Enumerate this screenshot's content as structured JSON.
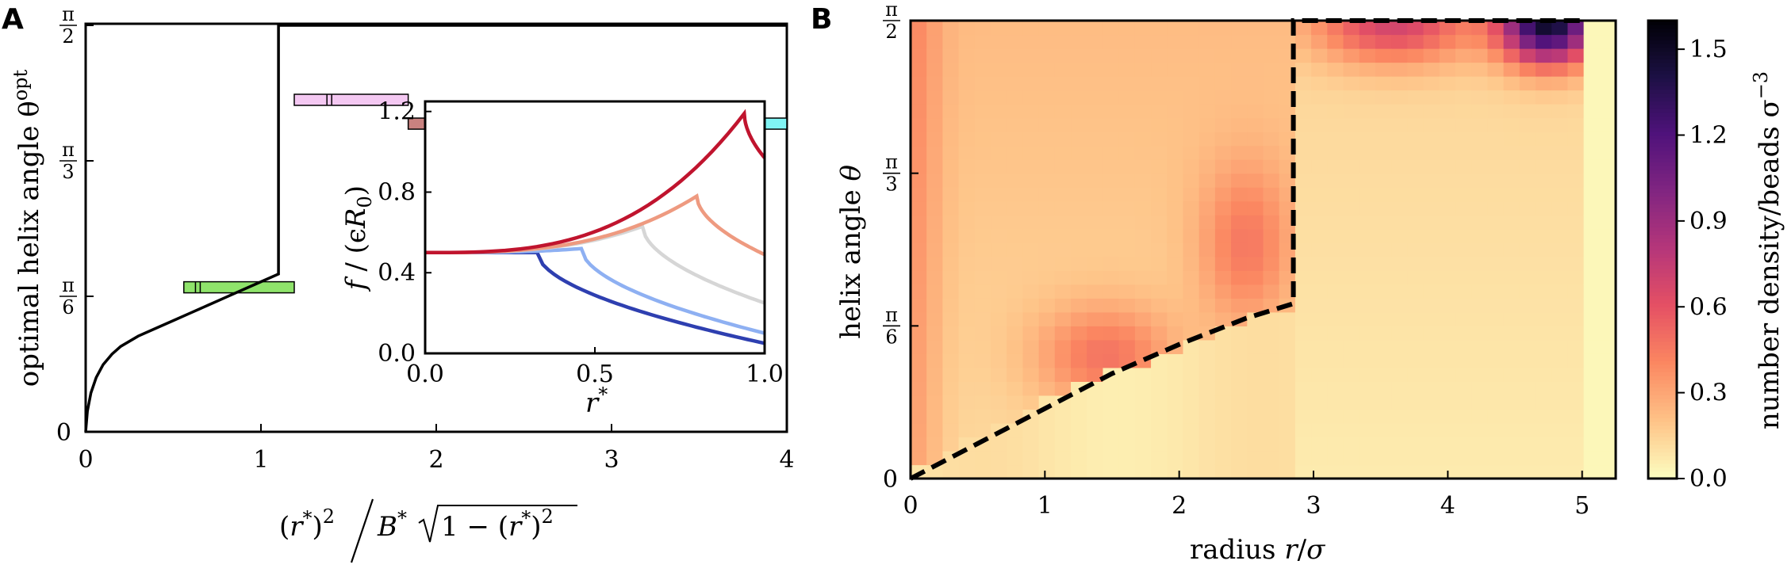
{
  "chart_data": [
    {
      "panel": "A",
      "type": "line",
      "xlabel": "(r*)² / B* √(1 − (r*)²)",
      "ylabel": "optimal helix angle θ^opt",
      "xlim": [
        0,
        4
      ],
      "ylim": [
        0,
        1.5708
      ],
      "xticks": [
        "0",
        "1",
        "2",
        "3",
        "4"
      ],
      "yticks": [
        "0",
        "π/6",
        "π/3",
        "π/2"
      ],
      "curve": {
        "x": [
          0,
          0.01,
          0.03,
          0.06,
          0.1,
          0.15,
          0.2,
          0.3,
          0.4,
          0.5,
          0.6,
          0.7,
          0.8,
          0.9,
          1.0,
          1.1,
          1.1,
          4.0
        ],
        "y": [
          0,
          0.08,
          0.15,
          0.21,
          0.26,
          0.3,
          0.33,
          0.37,
          0.4,
          0.43,
          0.46,
          0.49,
          0.52,
          0.55,
          0.58,
          0.61,
          1.5708,
          1.5708
        ]
      },
      "bars": [
        {
          "color": "#8fe36b",
          "x0": 0.56,
          "x1": 1.19,
          "mark": 0.64,
          "y": 0.5585
        },
        {
          "color": "#f4c8f2",
          "x0": 1.19,
          "x1": 1.84,
          "mark": 1.39,
          "y": 1.283
        },
        {
          "color": "#c98280",
          "x0": 1.84,
          "x1": 3.35,
          "mark": 2.88,
          "y": 1.191
        },
        {
          "color": "#80f4f4",
          "x0": 3.35,
          "x1": 4.0,
          "mark": null,
          "y": 1.191
        }
      ],
      "inset": {
        "xlabel": "r*",
        "ylabel": "f / (εR₀)",
        "xlim": [
          0,
          1
        ],
        "ylim": [
          0,
          1.25
        ],
        "xticks": [
          "0.0",
          "0.5",
          "1.0"
        ],
        "yticks": [
          "0.0",
          "0.4",
          "0.8",
          "1.2"
        ],
        "series": [
          {
            "color": "#2e3fb0",
            "peak_x": 0.33,
            "peak_y": 0.5,
            "end_y": 0.05
          },
          {
            "color": "#8eb0f2",
            "peak_x": 0.46,
            "peak_y": 0.52,
            "end_y": 0.1
          },
          {
            "color": "#d6d6d6",
            "peak_x": 0.64,
            "peak_y": 0.63,
            "end_y": 0.25
          },
          {
            "color": "#ee9a80",
            "peak_x": 0.8,
            "peak_y": 0.78,
            "end_y": 0.49
          },
          {
            "color": "#c0142e",
            "peak_x": 0.94,
            "peak_y": 1.19,
            "end_y": 0.97
          }
        ]
      }
    },
    {
      "panel": "B",
      "type": "heatmap",
      "xlabel": "radius r/σ",
      "ylabel": "helix angle θ",
      "xlim": [
        0,
        5.25
      ],
      "ylim": [
        0,
        1.5708
      ],
      "xticks": [
        "0",
        "1",
        "2",
        "3",
        "4",
        "5"
      ],
      "yticks": [
        "0",
        "π/6",
        "π/3",
        "π/2"
      ],
      "colorbar": {
        "label": "number density/beads σ⁻³",
        "range": [
          0,
          1.6
        ],
        "ticks": [
          "0.0",
          "0.3",
          "0.6",
          "0.9",
          "1.2",
          "1.5"
        ],
        "colormap": "magma_r"
      },
      "boundary": {
        "style": "dashed",
        "x": [
          0,
          0.5,
          1.0,
          1.5,
          2.0,
          2.5,
          2.85,
          2.85,
          5.0
        ],
        "y": [
          0,
          0.12,
          0.24,
          0.36,
          0.46,
          0.55,
          0.6,
          1.5708,
          1.5708
        ]
      }
    }
  ],
  "panels": {
    "a_label": "A",
    "b_label": "B"
  },
  "labels": {
    "a_xlabel_r2": "(r",
    "a_xlabel_star": "*",
    "a_xlabel_pow": ")",
    "a_ylabel": "optimal helix angle θ",
    "a_ylabel_sup": "opt",
    "inset_x": "r",
    "inset_y": "f / (ϵR",
    "b_xlabel": "radius r/σ",
    "b_ylabel": "helix angle θ",
    "cb_label": "number density/beads σ",
    "cb_sup": "−3"
  },
  "texts": {
    "ax_x_pieces": [
      "(r",
      "*",
      ")",
      "2",
      "B",
      "*",
      "1 − (r",
      "*",
      ")",
      "2"
    ],
    "pi": "π",
    "six": "6",
    "three": "3",
    "two": "2",
    "zero_sub": "0",
    "close_paren": ")",
    "star": "*"
  }
}
